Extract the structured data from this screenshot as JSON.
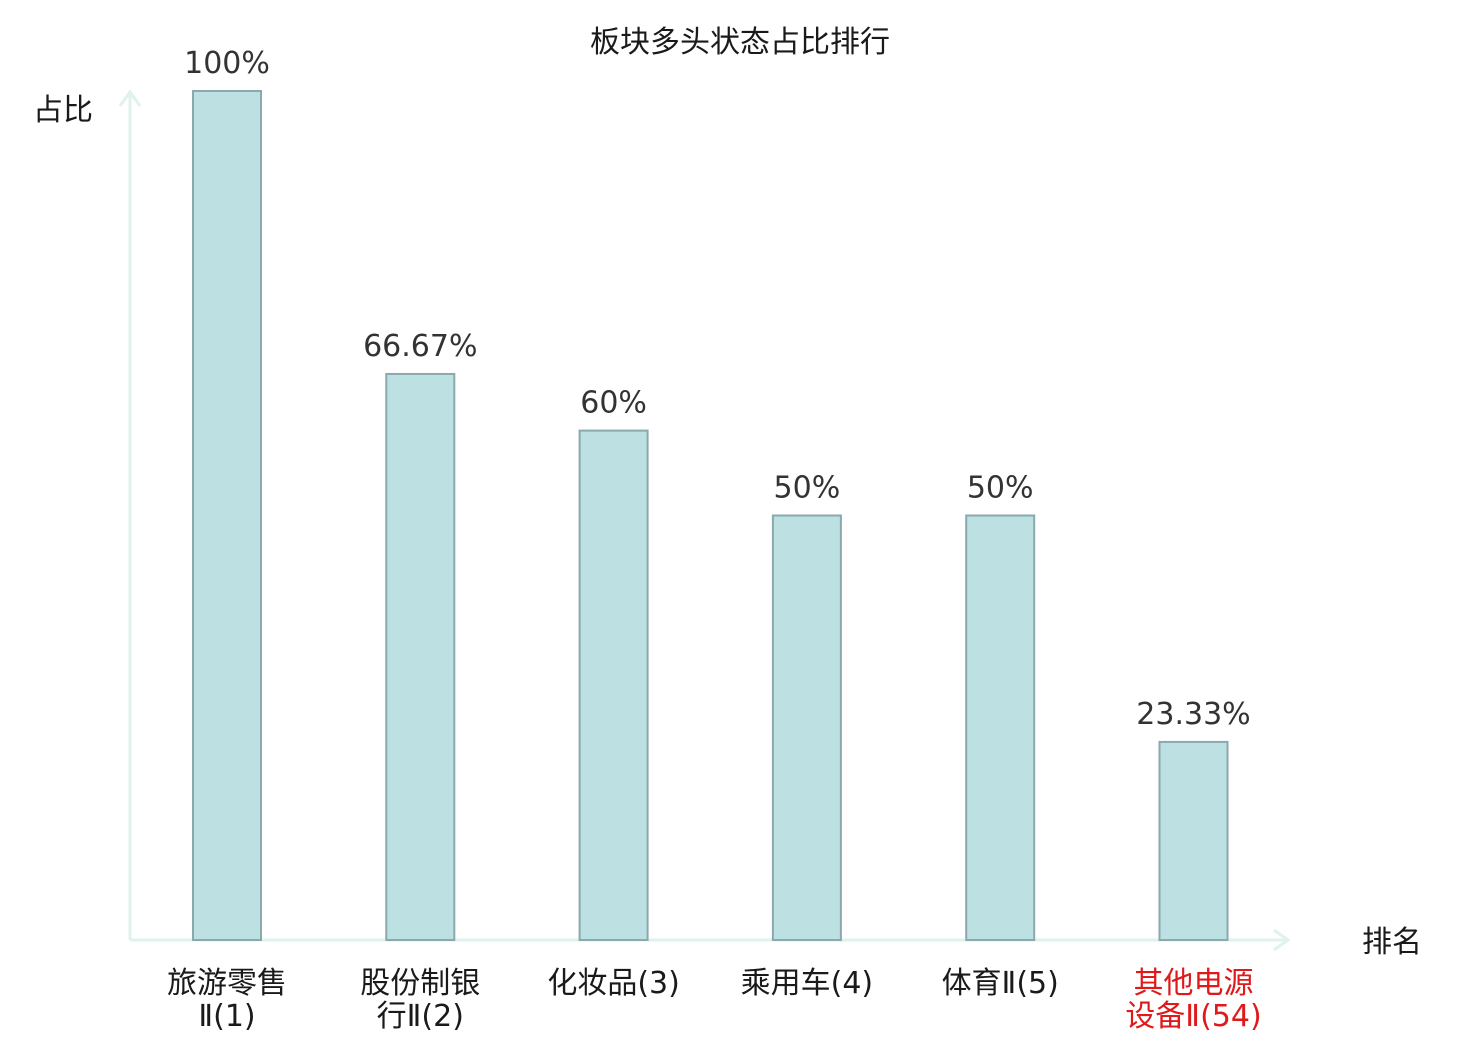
{
  "chart_data": {
    "type": "bar",
    "title": "板块多头状态占比排行",
    "ylabel": "占比",
    "xlabel": "排名",
    "ylim": [
      0,
      100
    ],
    "grid": false,
    "categories": [
      {
        "lines": [
          "旅游零售",
          "Ⅱ(1)"
        ],
        "highlight": false
      },
      {
        "lines": [
          "股份制银",
          "行Ⅱ(2)"
        ],
        "highlight": false
      },
      {
        "lines": [
          "化妆品(3)"
        ],
        "highlight": false
      },
      {
        "lines": [
          "乘用车(4)"
        ],
        "highlight": false
      },
      {
        "lines": [
          "体育Ⅱ(5)"
        ],
        "highlight": false
      },
      {
        "lines": [
          "其他电源",
          "设备Ⅱ(54)"
        ],
        "highlight": true
      }
    ],
    "values": [
      100,
      66.67,
      60,
      50,
      50,
      23.33
    ],
    "value_labels": [
      "100%",
      "66.67%",
      "60%",
      "50%",
      "50%",
      "23.33%"
    ],
    "colors": {
      "bar_fill": "#bde0e2",
      "bar_stroke": "#8aa9ac",
      "axis": "#dff2ee",
      "text": "#1a1a1a",
      "value_text": "#333333",
      "highlight_text": "#e0191b"
    }
  }
}
